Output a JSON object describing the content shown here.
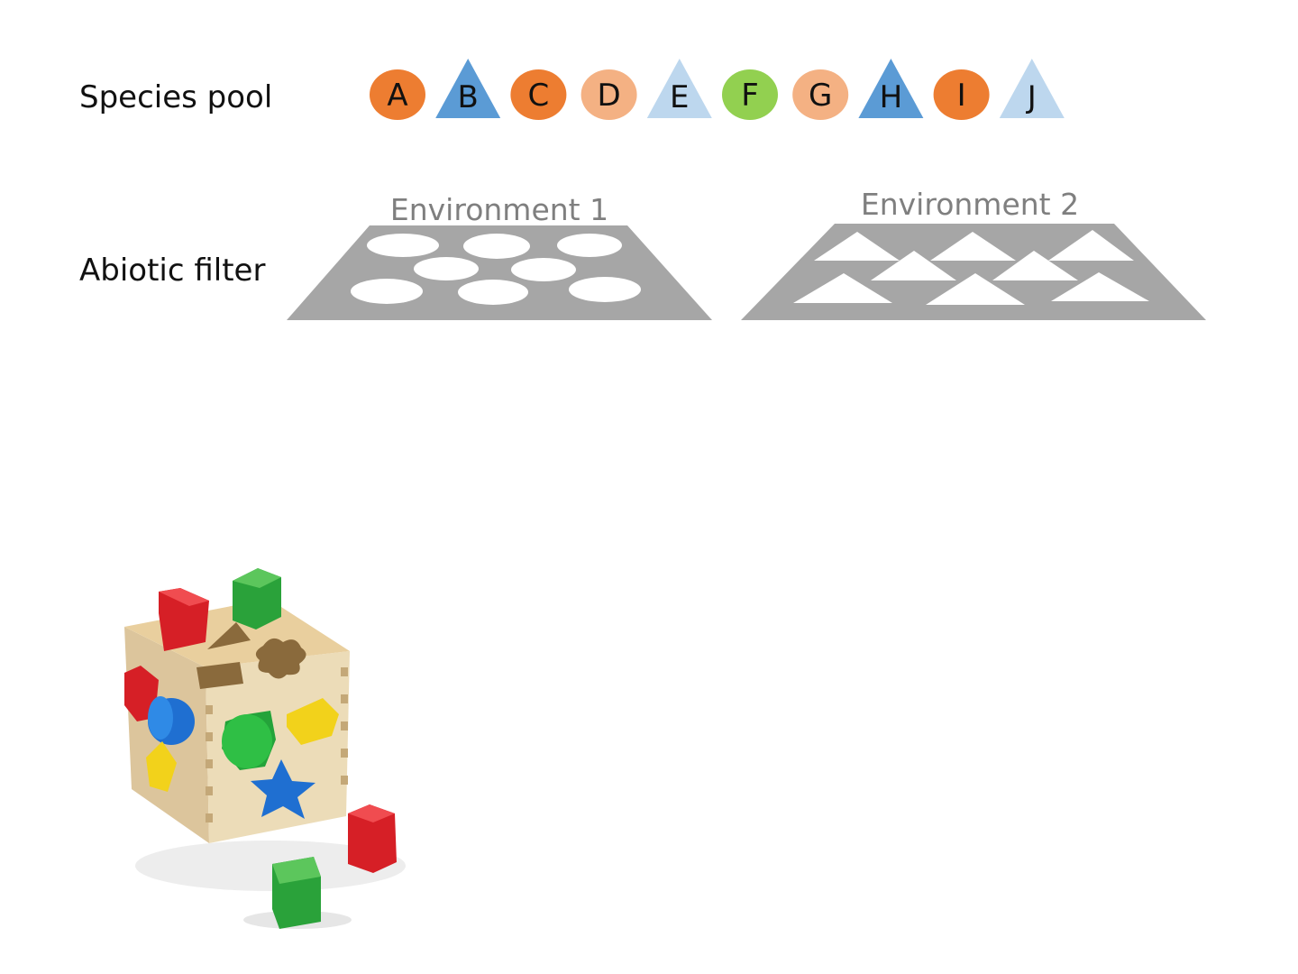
{
  "labels": {
    "species_pool": "Species pool",
    "abiotic_filter": "Abiotic filter"
  },
  "colors": {
    "dark_orange": "#ED7D31",
    "light_orange": "#F4B183",
    "dark_blue": "#5B9BD5",
    "light_blue": "#BDD7EE",
    "green": "#92D050",
    "filter_gray": "#A6A6A6",
    "env_label_gray": "#7F7F7F"
  },
  "species": [
    {
      "letter": "A",
      "shape": "circle",
      "color": "dark_orange"
    },
    {
      "letter": "B",
      "shape": "triangle",
      "color": "dark_blue"
    },
    {
      "letter": "C",
      "shape": "circle",
      "color": "dark_orange"
    },
    {
      "letter": "D",
      "shape": "circle",
      "color": "light_orange"
    },
    {
      "letter": "E",
      "shape": "triangle",
      "color": "light_blue"
    },
    {
      "letter": "F",
      "shape": "circle",
      "color": "green"
    },
    {
      "letter": "G",
      "shape": "circle",
      "color": "light_orange"
    },
    {
      "letter": "H",
      "shape": "triangle",
      "color": "dark_blue"
    },
    {
      "letter": "I",
      "shape": "circle",
      "color": "dark_orange"
    },
    {
      "letter": "J",
      "shape": "triangle",
      "color": "light_blue"
    }
  ],
  "environments": [
    {
      "title": "Environment 1",
      "hole_shape": "ellipse",
      "hole_count": 7
    },
    {
      "title": "Environment 2",
      "hole_shape": "triangle",
      "hole_count": 7
    }
  ],
  "illustration": {
    "subject": "wooden shape-sorter cube toy"
  }
}
